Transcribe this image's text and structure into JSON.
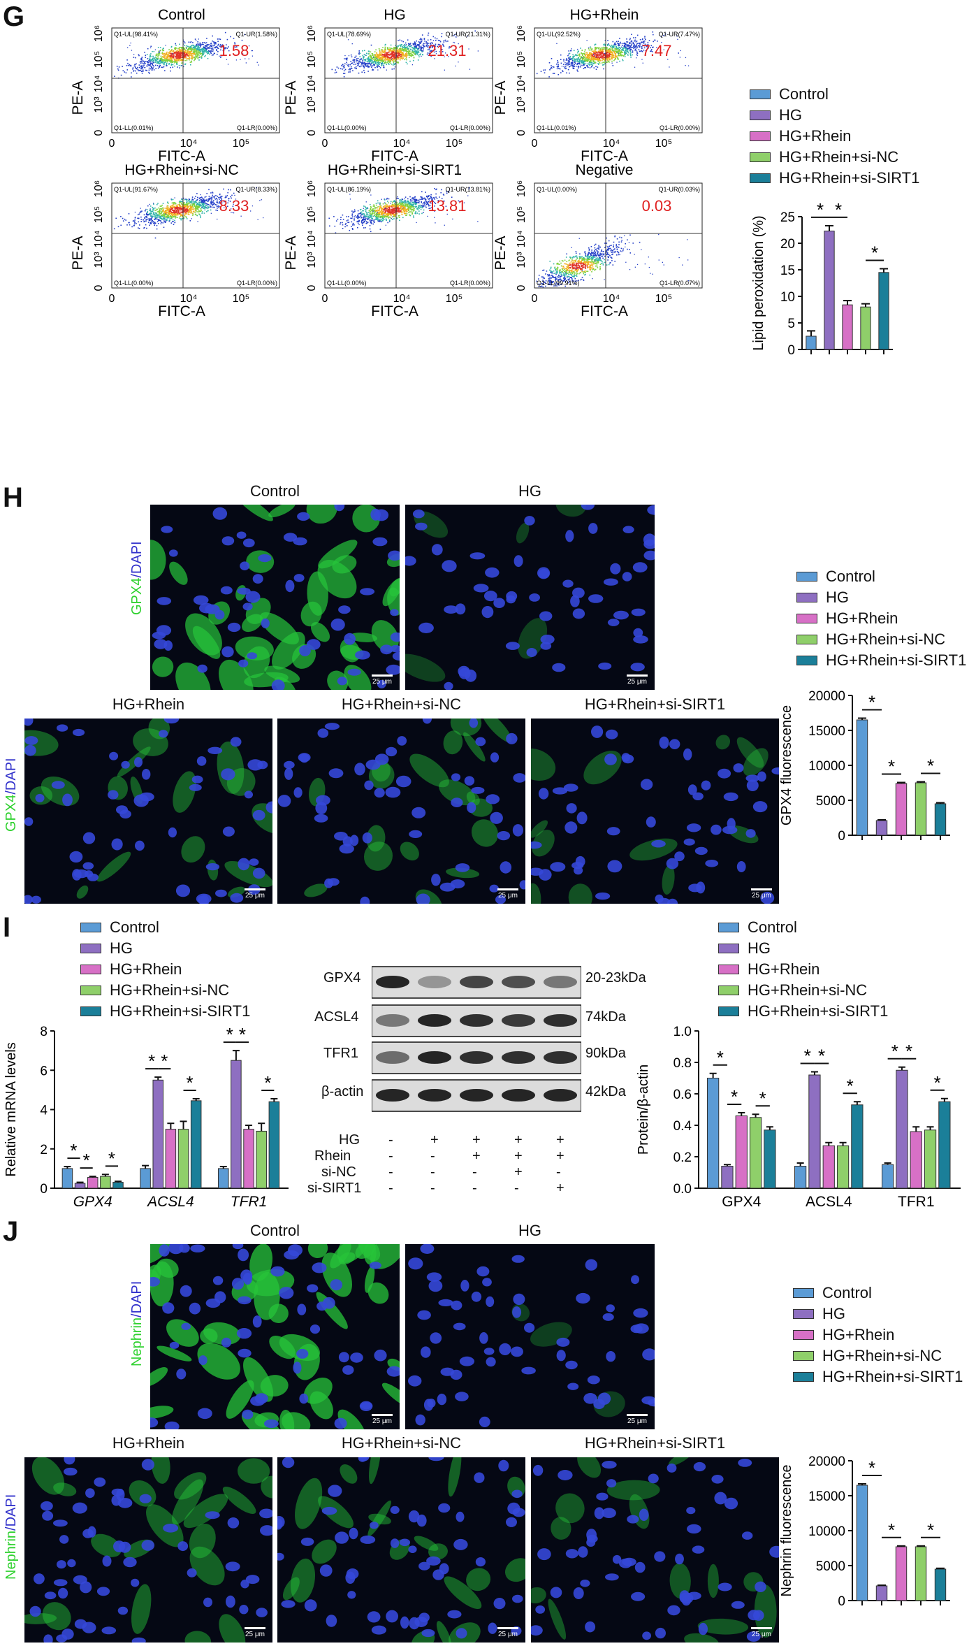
{
  "colors": {
    "control": "#5b9bd5",
    "hg": "#8e6fc1",
    "rhein": "#d770c6",
    "sinc": "#8fcf6a",
    "sisirt1": "#1b7f99",
    "fitcA": "#2952a3",
    "red": "#e02020"
  },
  "panelG": {
    "label": "G",
    "plots": [
      {
        "title": "Control",
        "ul": "Q1-UL(98.41%)",
        "ur": "Q1-UR(1.58%)",
        "ll": "Q1-LL(0.01%)",
        "lr": "Q1-LR(0.00%)",
        "value": "1.58"
      },
      {
        "title": "HG",
        "ul": "Q1-UL(78.69%)",
        "ur": "Q1-UR(21.31%)",
        "ll": "Q1-LL(0.00%)",
        "lr": "Q1-LR(0.00%)",
        "value": "21.31"
      },
      {
        "title": "HG+Rhein",
        "ul": "Q1-UL(92.52%)",
        "ur": "Q1-UR(7.47%)",
        "ll": "Q1-LL(0.01%)",
        "lr": "Q1-LR(0.00%)",
        "value": "7.47"
      },
      {
        "title": "HG+Rhein+si-NC",
        "ul": "Q1-UL(91.67%)",
        "ur": "Q1-UR(8.33%)",
        "ll": "Q1-LL(0.00%)",
        "lr": "Q1-LR(0.00%)",
        "value": "8.33"
      },
      {
        "title": "HG+Rhein+si-SIRT1",
        "ul": "Q1-UL(86.19%)",
        "ur": "Q1-UR(13.81%)",
        "ll": "Q1-LL(0.00%)",
        "lr": "Q1-LR(0.00%)",
        "value": "13.81"
      },
      {
        "title": "Negative",
        "ul": "Q1-UL(0.00%)",
        "ur": "Q1-UR(0.03%)",
        "ll": "Q1-LL(99.91%)",
        "lr": "Q1-LR(0.07%)",
        "value": "0.03"
      }
    ],
    "xlabel": "FITC-A",
    "ylabel": "PE-A",
    "xticks": [
      "0",
      "10⁴",
      "10⁵"
    ],
    "yticks": [
      "0",
      "10³",
      "10⁴",
      "10⁵",
      "10⁶"
    ]
  },
  "legendGroups": [
    "Control",
    "HG",
    "HG+Rhein",
    "HG+Rhein+si-NC",
    "HG+Rhein+si-SIRT1"
  ],
  "panelH": {
    "label": "H",
    "images": [
      "Control",
      "HG",
      "HG+Rhein",
      "HG+Rhein+si-NC",
      "HG+Rhein+si-SIRT1"
    ],
    "stain_green": "GPX4",
    "stain_slash": "/",
    "stain_blue": "DAPI",
    "scale": "25 μm"
  },
  "panelI": {
    "label": "I",
    "blot_proteins": [
      "GPX4",
      "ACSL4",
      "TFR1",
      "β-actin"
    ],
    "blot_sizes": [
      "20-23kDa",
      "74kDa",
      "90kDa",
      "42kDa"
    ],
    "treatments": [
      {
        "name": "HG",
        "signs": [
          "-",
          "+",
          "+",
          "+",
          "+"
        ]
      },
      {
        "name": "Rhein",
        "signs": [
          "-",
          "-",
          "+",
          "+",
          "+"
        ]
      },
      {
        "name": "si-NC",
        "signs": [
          "-",
          "-",
          "-",
          "+",
          "-"
        ]
      },
      {
        "name": "si-SIRT1",
        "signs": [
          "-",
          "-",
          "-",
          "-",
          "+"
        ]
      }
    ]
  },
  "panelJ": {
    "label": "J",
    "images": [
      "Control",
      "HG",
      "HG+Rhein",
      "HG+Rhein+si-NC",
      "HG+Rhein+si-SIRT1"
    ],
    "stain_green": "Nephrin",
    "stain_slash": "/",
    "stain_blue": "DAPI",
    "scale": "25 μm"
  },
  "chart_data": [
    {
      "type": "bar",
      "id": "lipid",
      "ylabel": "Lipid peroxidation (%)",
      "ylim": [
        0,
        25
      ],
      "yticks": [
        0,
        5,
        10,
        15,
        20,
        25
      ],
      "categories": [
        "Control",
        "HG",
        "HG+Rhein",
        "HG+Rhein+si-NC",
        "HG+Rhein+si-SIRT1"
      ],
      "values": [
        2.5,
        22.3,
        8.4,
        8.0,
        14.5
      ],
      "errors": [
        1.0,
        1.0,
        0.8,
        0.6,
        0.7
      ],
      "sig": [
        [
          0,
          1
        ],
        [
          1,
          2
        ],
        [
          3,
          4
        ]
      ],
      "sig_label": "*"
    },
    {
      "type": "bar",
      "id": "gpx4fl",
      "ylabel": "GPX4 fluorescence",
      "ylim": [
        0,
        20000
      ],
      "yticks": [
        0,
        5000,
        10000,
        15000,
        20000
      ],
      "categories": [
        "Control",
        "HG",
        "HG+Rhein",
        "HG+Rhein+si-NC",
        "HG+Rhein+si-SIRT1"
      ],
      "values": [
        16500,
        2100,
        7400,
        7500,
        4500
      ],
      "errors": [
        250,
        100,
        150,
        150,
        150
      ],
      "sig": [
        [
          0,
          1
        ],
        [
          1,
          2
        ],
        [
          3,
          4
        ]
      ],
      "sig_label": "*"
    },
    {
      "type": "bar",
      "id": "mrna",
      "ylabel": "Relative mRNA levels",
      "ylim": [
        0,
        8
      ],
      "yticks": [
        0,
        2,
        4,
        6,
        8
      ],
      "groups": [
        "GPX4",
        "ACSL4",
        "TFR1"
      ],
      "series": [
        {
          "name": "Control",
          "values": [
            1.0,
            1.0,
            1.0
          ],
          "errors": [
            0.1,
            0.15,
            0.1
          ]
        },
        {
          "name": "HG",
          "values": [
            0.25,
            5.5,
            6.5
          ],
          "errors": [
            0.05,
            0.15,
            0.5
          ]
        },
        {
          "name": "HG+Rhein",
          "values": [
            0.55,
            3.0,
            3.0
          ],
          "errors": [
            0.05,
            0.3,
            0.2
          ]
        },
        {
          "name": "HG+Rhein+si-NC",
          "values": [
            0.6,
            3.0,
            2.9
          ],
          "errors": [
            0.1,
            0.4,
            0.4
          ]
        },
        {
          "name": "HG+Rhein+si-SIRT1",
          "values": [
            0.3,
            4.45,
            4.4
          ],
          "errors": [
            0.05,
            0.1,
            0.15
          ]
        }
      ],
      "sig": [
        [
          [
            0,
            1
          ],
          [
            1,
            2
          ],
          [
            3,
            4
          ]
        ],
        [
          [
            0,
            1
          ],
          [
            1,
            2
          ],
          [
            3,
            4
          ]
        ],
        [
          [
            0,
            1
          ],
          [
            1,
            2
          ],
          [
            3,
            4
          ]
        ]
      ],
      "sig_label": "*"
    },
    {
      "type": "bar",
      "id": "protein",
      "ylabel": "Protein/β-actin",
      "ylim": [
        0,
        1.0
      ],
      "yticks": [
        "0.0",
        "0.2",
        "0.4",
        "0.6",
        "0.8",
        "1.0"
      ],
      "groups": [
        "GPX4",
        "ACSL4",
        "TFR1"
      ],
      "series": [
        {
          "name": "Control",
          "values": [
            0.7,
            0.14,
            0.15
          ],
          "errors": [
            0.03,
            0.02,
            0.01
          ]
        },
        {
          "name": "HG",
          "values": [
            0.14,
            0.72,
            0.75
          ],
          "errors": [
            0.01,
            0.02,
            0.02
          ]
        },
        {
          "name": "HG+Rhein",
          "values": [
            0.46,
            0.27,
            0.36
          ],
          "errors": [
            0.02,
            0.02,
            0.03
          ]
        },
        {
          "name": "HG+Rhein+si-NC",
          "values": [
            0.45,
            0.27,
            0.37
          ],
          "errors": [
            0.02,
            0.02,
            0.02
          ]
        },
        {
          "name": "HG+Rhein+si-SIRT1",
          "values": [
            0.37,
            0.53,
            0.55
          ],
          "errors": [
            0.02,
            0.02,
            0.02
          ]
        }
      ],
      "sig": [
        [
          [
            0,
            1
          ],
          [
            1,
            2
          ],
          [
            3,
            4
          ]
        ],
        [
          [
            0,
            1
          ],
          [
            1,
            2
          ],
          [
            3,
            4
          ]
        ],
        [
          [
            0,
            1
          ],
          [
            1,
            2
          ],
          [
            3,
            4
          ]
        ]
      ],
      "sig_label": "*"
    },
    {
      "type": "bar",
      "id": "nephfl",
      "ylabel": "Nephrin fluorescence",
      "ylim": [
        0,
        20000
      ],
      "yticks": [
        0,
        5000,
        10000,
        15000,
        20000
      ],
      "categories": [
        "Control",
        "HG",
        "HG+Rhein",
        "HG+Rhein+si-NC",
        "HG+Rhein+si-SIRT1"
      ],
      "values": [
        16500,
        2100,
        7700,
        7700,
        4500
      ],
      "errors": [
        200,
        100,
        120,
        120,
        120
      ],
      "sig": [
        [
          0,
          1
        ],
        [
          1,
          2
        ],
        [
          3,
          4
        ]
      ],
      "sig_label": "*"
    }
  ]
}
